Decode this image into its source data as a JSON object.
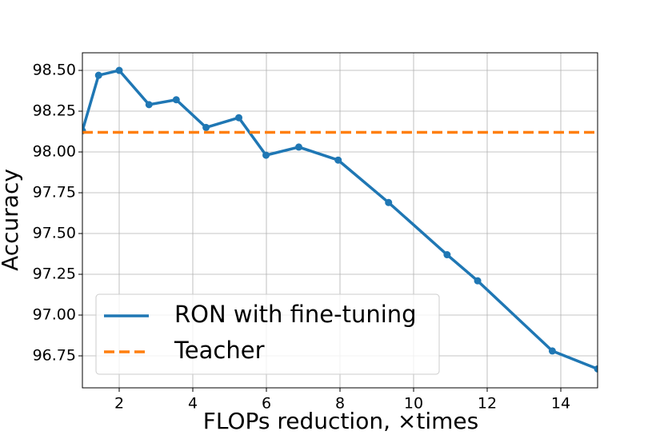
{
  "chart_data": {
    "type": "line",
    "xlabel": "FLOPs reduction, ×times",
    "ylabel": "Accuracy",
    "xlim": [
      1,
      15
    ],
    "xticks": [
      2,
      4,
      6,
      8,
      10,
      12,
      14
    ],
    "ylim": [
      96.554,
      98.608
    ],
    "yticks": [
      {
        "value": 96.75,
        "label": "96.75"
      },
      {
        "value": 97.0,
        "label": "97.00"
      },
      {
        "value": 97.25,
        "label": "97.25"
      },
      {
        "value": 97.5,
        "label": "97.50"
      },
      {
        "value": 97.75,
        "label": "97.75"
      },
      {
        "value": 98.0,
        "label": "98.00"
      },
      {
        "value": 98.25,
        "label": "98.25"
      },
      {
        "value": 98.5,
        "label": "98.50"
      }
    ],
    "grid": true,
    "legend": "lower left",
    "series": [
      {
        "name": "RON with fine-tuning",
        "color": "#1f77b4",
        "linestyle": "solid",
        "marker": true,
        "x": [
          1.0,
          1.44,
          2.0,
          2.81,
          3.55,
          4.36,
          5.25,
          5.99,
          6.88,
          7.95,
          9.32,
          10.91,
          11.74,
          13.77,
          15.0
        ],
        "values": [
          98.13,
          98.47,
          98.5,
          98.29,
          98.32,
          98.15,
          98.21,
          97.98,
          98.03,
          97.95,
          97.69,
          97.37,
          97.21,
          96.78,
          96.67
        ]
      },
      {
        "name": "Teacher",
        "color": "#ff7f0e",
        "linestyle": "dashed",
        "marker": false,
        "x": [
          1,
          15
        ],
        "values": [
          98.12,
          98.12
        ]
      }
    ]
  }
}
